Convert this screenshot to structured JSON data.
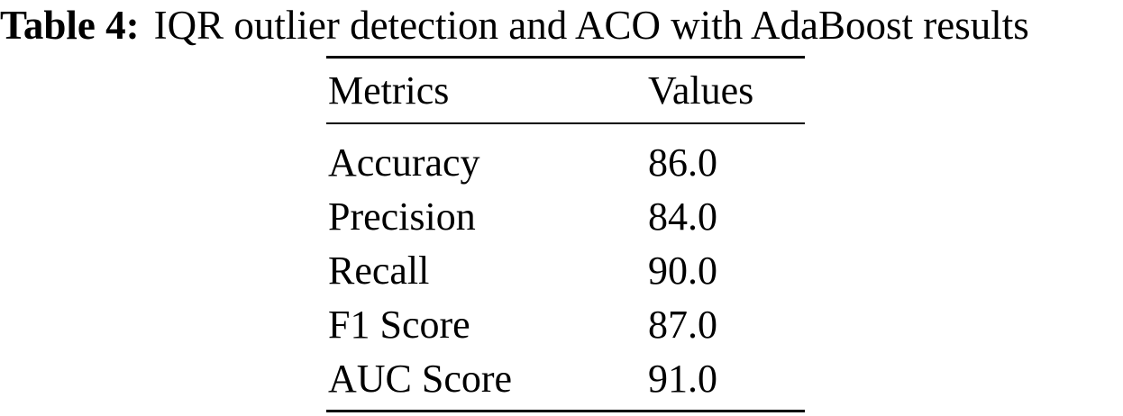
{
  "caption": {
    "label": "Table 4:",
    "text": "IQR outlier detection and ACO with AdaBoost results"
  },
  "table": {
    "columns": [
      "Metrics",
      "Values"
    ],
    "rows": [
      {
        "metric": "Accuracy",
        "value": "86.0"
      },
      {
        "metric": "Precision",
        "value": "84.0"
      },
      {
        "metric": "Recall",
        "value": "90.0"
      },
      {
        "metric": "F1 Score",
        "value": "87.0"
      },
      {
        "metric": "AUC Score",
        "value": "91.0"
      }
    ]
  },
  "chart_data": {
    "type": "table",
    "title": "Table 4: IQR outlier detection and ACO with AdaBoost results",
    "categories": [
      "Accuracy",
      "Precision",
      "Recall",
      "F1 Score",
      "AUC Score"
    ],
    "values": [
      86.0,
      84.0,
      90.0,
      87.0,
      91.0
    ]
  },
  "colors": {
    "text": "#000000",
    "background": "#ffffff",
    "rule": "#000000"
  }
}
